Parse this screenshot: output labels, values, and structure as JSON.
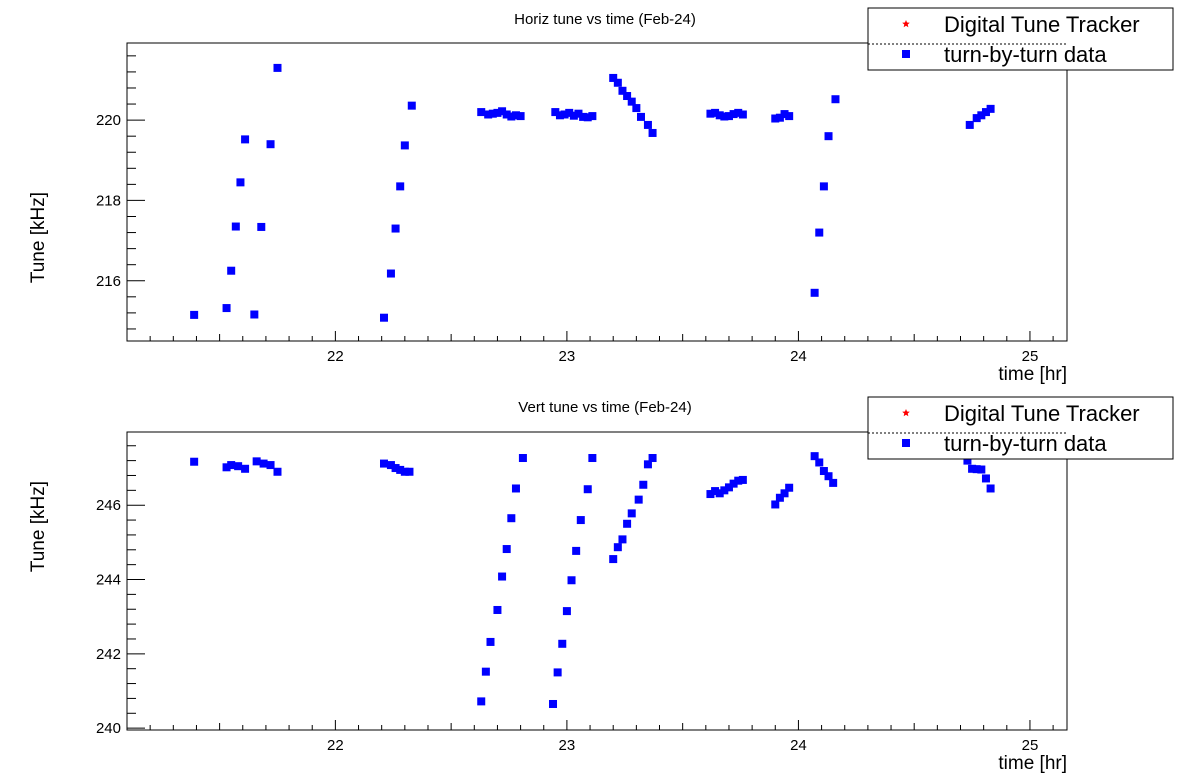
{
  "chart_data": [
    {
      "type": "scatter",
      "title": "Horiz tune vs time (Feb-24)",
      "xlabel": "time [hr]",
      "ylabel": "Tune [kHz]",
      "xlim": [
        21.1,
        25.16
      ],
      "ylim": [
        214.5,
        221.92
      ],
      "xticks": [
        22,
        23,
        24,
        25
      ],
      "yticks": [
        216,
        218,
        220
      ],
      "legend": {
        "position": "top-right",
        "entries": [
          {
            "label": "Digital Tune Tracker",
            "color": "#ff0000",
            "marker": "star"
          },
          {
            "label": "turn-by-turn data",
            "color": "#0000ff",
            "marker": "square"
          }
        ]
      },
      "series": [
        {
          "name": "turn-by-turn data",
          "color": "#0000ff",
          "points": [
            [
              21.39,
              215.15
            ],
            [
              21.53,
              215.32
            ],
            [
              21.55,
              216.25
            ],
            [
              21.57,
              217.35
            ],
            [
              21.59,
              218.45
            ],
            [
              21.61,
              219.52
            ],
            [
              21.65,
              215.16
            ],
            [
              21.68,
              217.34
            ],
            [
              21.72,
              219.4
            ],
            [
              21.75,
              221.3
            ],
            [
              22.21,
              215.08
            ],
            [
              22.24,
              216.18
            ],
            [
              22.26,
              217.3
            ],
            [
              22.28,
              218.35
            ],
            [
              22.3,
              219.37
            ],
            [
              22.33,
              220.36
            ],
            [
              22.63,
              220.2
            ],
            [
              22.66,
              220.14
            ],
            [
              22.68,
              220.16
            ],
            [
              22.7,
              220.18
            ],
            [
              22.72,
              220.22
            ],
            [
              22.74,
              220.14
            ],
            [
              22.76,
              220.09
            ],
            [
              22.78,
              220.12
            ],
            [
              22.8,
              220.1
            ],
            [
              22.95,
              220.2
            ],
            [
              22.97,
              220.12
            ],
            [
              22.99,
              220.14
            ],
            [
              23.01,
              220.18
            ],
            [
              23.03,
              220.11
            ],
            [
              23.05,
              220.16
            ],
            [
              23.07,
              220.08
            ],
            [
              23.09,
              220.07
            ],
            [
              23.11,
              220.1
            ],
            [
              23.2,
              221.05
            ],
            [
              23.22,
              220.93
            ],
            [
              23.24,
              220.73
            ],
            [
              23.26,
              220.6
            ],
            [
              23.28,
              220.46
            ],
            [
              23.3,
              220.3
            ],
            [
              23.32,
              220.08
            ],
            [
              23.35,
              219.88
            ],
            [
              23.37,
              219.68
            ],
            [
              23.62,
              220.16
            ],
            [
              23.64,
              220.18
            ],
            [
              23.66,
              220.12
            ],
            [
              23.68,
              220.09
            ],
            [
              23.7,
              220.1
            ],
            [
              23.72,
              220.15
            ],
            [
              23.74,
              220.18
            ],
            [
              23.76,
              220.14
            ],
            [
              23.9,
              220.04
            ],
            [
              23.92,
              220.06
            ],
            [
              23.94,
              220.15
            ],
            [
              23.96,
              220.1
            ],
            [
              24.07,
              215.7
            ],
            [
              24.09,
              217.2
            ],
            [
              24.11,
              218.35
            ],
            [
              24.13,
              219.6
            ],
            [
              24.16,
              220.52
            ],
            [
              24.74,
              219.88
            ],
            [
              24.77,
              220.05
            ],
            [
              24.79,
              220.12
            ],
            [
              24.81,
              220.2
            ],
            [
              24.83,
              220.28
            ]
          ]
        }
      ]
    },
    {
      "type": "scatter",
      "title": "Vert tune vs time (Feb-24)",
      "xlabel": "time [hr]",
      "ylabel": "Tune [kHz]",
      "xlim": [
        21.1,
        25.16
      ],
      "ylim": [
        239.95,
        247.97
      ],
      "xticks": [
        22,
        23,
        24,
        25
      ],
      "yticks": [
        240,
        242,
        244,
        246
      ],
      "legend": {
        "position": "top-right",
        "entries": [
          {
            "label": "Digital Tune Tracker",
            "color": "#ff0000",
            "marker": "star"
          },
          {
            "label": "turn-by-turn data",
            "color": "#0000ff",
            "marker": "square"
          }
        ]
      },
      "series": [
        {
          "name": "turn-by-turn data",
          "color": "#0000ff",
          "points": [
            [
              21.39,
              247.17
            ],
            [
              21.53,
              247.02
            ],
            [
              21.55,
              247.08
            ],
            [
              21.58,
              247.05
            ],
            [
              21.61,
              246.98
            ],
            [
              21.66,
              247.18
            ],
            [
              21.69,
              247.12
            ],
            [
              21.72,
              247.08
            ],
            [
              21.75,
              246.9
            ],
            [
              22.21,
              247.12
            ],
            [
              22.24,
              247.08
            ],
            [
              22.26,
              247.0
            ],
            [
              22.28,
              246.95
            ],
            [
              22.3,
              246.9
            ],
            [
              22.32,
              246.9
            ],
            [
              22.63,
              240.72
            ],
            [
              22.65,
              241.52
            ],
            [
              22.67,
              242.32
            ],
            [
              22.7,
              243.18
            ],
            [
              22.72,
              244.08
            ],
            [
              22.74,
              244.82
            ],
            [
              22.76,
              245.65
            ],
            [
              22.78,
              246.45
            ],
            [
              22.81,
              247.27
            ],
            [
              22.94,
              240.65
            ],
            [
              22.96,
              241.5
            ],
            [
              22.98,
              242.27
            ],
            [
              23.0,
              243.15
            ],
            [
              23.02,
              243.98
            ],
            [
              23.04,
              244.77
            ],
            [
              23.06,
              245.6
            ],
            [
              23.09,
              246.43
            ],
            [
              23.11,
              247.27
            ],
            [
              23.2,
              244.55
            ],
            [
              23.22,
              244.87
            ],
            [
              23.24,
              245.08
            ],
            [
              23.26,
              245.5
            ],
            [
              23.28,
              245.78
            ],
            [
              23.31,
              246.15
            ],
            [
              23.33,
              246.55
            ],
            [
              23.35,
              247.1
            ],
            [
              23.37,
              247.27
            ],
            [
              23.62,
              246.3
            ],
            [
              23.64,
              246.38
            ],
            [
              23.66,
              246.32
            ],
            [
              23.68,
              246.4
            ],
            [
              23.7,
              246.48
            ],
            [
              23.72,
              246.58
            ],
            [
              23.74,
              246.66
            ],
            [
              23.76,
              246.68
            ],
            [
              23.9,
              246.02
            ],
            [
              23.92,
              246.2
            ],
            [
              23.94,
              246.32
            ],
            [
              23.96,
              246.47
            ],
            [
              24.07,
              247.32
            ],
            [
              24.09,
              247.15
            ],
            [
              24.11,
              246.92
            ],
            [
              24.13,
              246.78
            ],
            [
              24.15,
              246.6
            ],
            [
              24.73,
              247.2
            ],
            [
              24.75,
              246.98
            ],
            [
              24.77,
              246.97
            ],
            [
              24.79,
              246.96
            ],
            [
              24.81,
              246.72
            ],
            [
              24.83,
              246.45
            ]
          ]
        }
      ]
    }
  ]
}
